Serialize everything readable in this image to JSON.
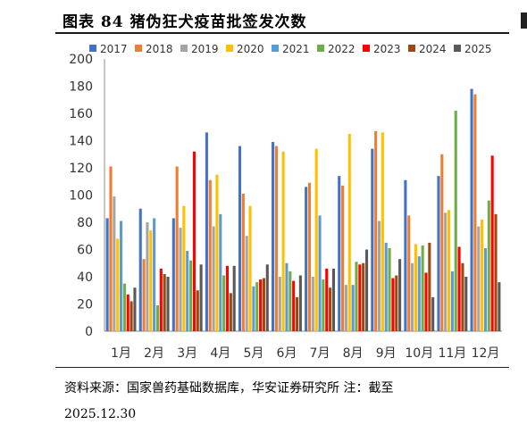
{
  "figure": {
    "title": "图表 84 猪伪狂犬疫苗批签发次数",
    "source": "资料来源：国家兽药基础数据库，华安证券研究所 注：截至",
    "date": "2025.12.30"
  },
  "chart_data": {
    "type": "bar",
    "categories": [
      "1月",
      "2月",
      "3月",
      "4月",
      "5月",
      "6月",
      "7月",
      "8月",
      "9月",
      "10月",
      "11月",
      "12月"
    ],
    "ylim": [
      0,
      200
    ],
    "yticks": [
      0,
      20,
      40,
      60,
      80,
      100,
      120,
      140,
      160,
      180,
      200
    ],
    "grid": false,
    "legend_position": "top",
    "series": [
      {
        "name": "2017",
        "color": "#4472C4",
        "values": [
          83,
          90,
          83,
          146,
          136,
          139,
          106,
          114,
          134,
          111,
          114,
          178
        ]
      },
      {
        "name": "2018",
        "color": "#ED7D31",
        "values": [
          121,
          53,
          121,
          111,
          101,
          136,
          109,
          107,
          147,
          85,
          130,
          174
        ]
      },
      {
        "name": "2019",
        "color": "#A5A5A5",
        "values": [
          99,
          80,
          76,
          77,
          70,
          40,
          40,
          34,
          81,
          50,
          87,
          77
        ]
      },
      {
        "name": "2020",
        "color": "#FFC000",
        "values": [
          68,
          74,
          92,
          115,
          92,
          132,
          134,
          145,
          146,
          64,
          89,
          82
        ]
      },
      {
        "name": "2021",
        "color": "#5B9BD5",
        "values": [
          81,
          83,
          59,
          86,
          33,
          50,
          85,
          34,
          65,
          55,
          44,
          61
        ]
      },
      {
        "name": "2022",
        "color": "#70AD47",
        "values": [
          35,
          19,
          52,
          41,
          36,
          44,
          38,
          51,
          61,
          63,
          162,
          96
        ]
      },
      {
        "name": "2023",
        "color": "#FF0000",
        "values": [
          27,
          46,
          132,
          48,
          38,
          37,
          46,
          49,
          39,
          43,
          62,
          129
        ]
      },
      {
        "name": "2024",
        "color": "#9E480E",
        "values": [
          22,
          42,
          30,
          28,
          39,
          25,
          32,
          50,
          41,
          65,
          50,
          86
        ]
      },
      {
        "name": "2025",
        "color": "#595959",
        "values": [
          32,
          40,
          49,
          48,
          49,
          41,
          46,
          60,
          53,
          25,
          40,
          36
        ]
      }
    ]
  }
}
